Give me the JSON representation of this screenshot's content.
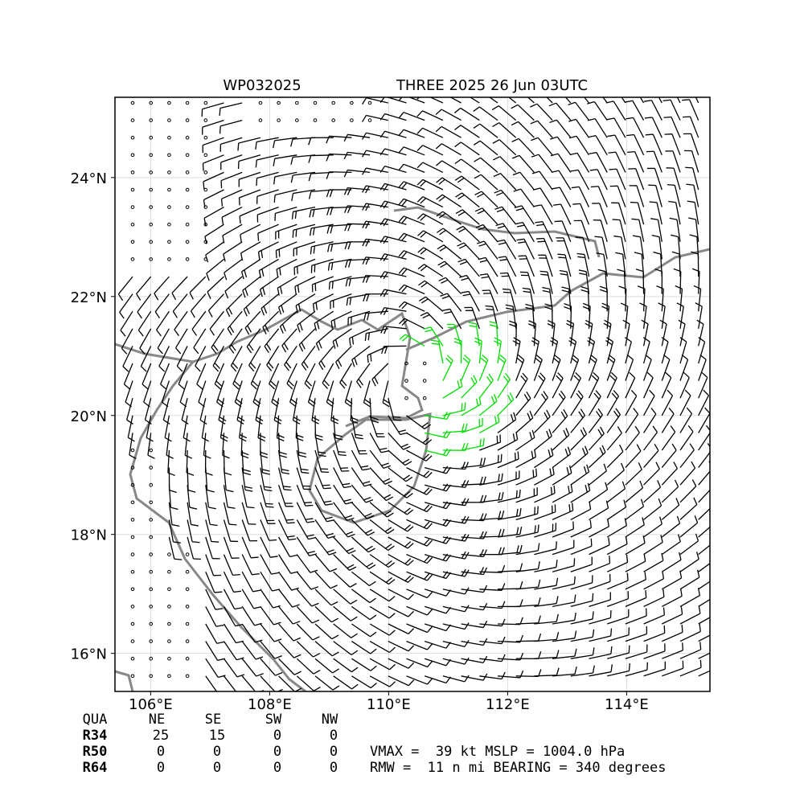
{
  "map": {
    "title_left": "WP032025",
    "title_right": "THREE 2025 26 Jun 03UTC",
    "xlim": [
      105.4,
      115.4
    ],
    "ylim": [
      15.36,
      25.35
    ],
    "xticks": [
      {
        "value": 106,
        "label": "106°E"
      },
      {
        "value": 108,
        "label": "108°E"
      },
      {
        "value": 110,
        "label": "110°E"
      },
      {
        "value": 112,
        "label": "112°E"
      },
      {
        "value": 114,
        "label": "114°E"
      }
    ],
    "yticks": [
      {
        "value": 16,
        "label": "16°N"
      },
      {
        "value": 18,
        "label": "18°N"
      },
      {
        "value": 20,
        "label": "20°N"
      },
      {
        "value": 22,
        "label": "22°N"
      },
      {
        "value": 24,
        "label": "24°N"
      }
    ]
  },
  "table": {
    "header": [
      "QUA",
      "NE",
      "SE",
      "SW",
      "NW"
    ],
    "rows": [
      [
        "R34",
        25,
        15,
        0,
        0
      ],
      [
        "R50",
        0,
        0,
        0,
        0
      ],
      [
        "R64",
        0,
        0,
        0,
        0
      ]
    ]
  },
  "info": [
    "VMAX =  39 kt MSLP = 1004.0 hPa",
    "RMW =  11 n mi BEARING = 340 degrees"
  ]
}
